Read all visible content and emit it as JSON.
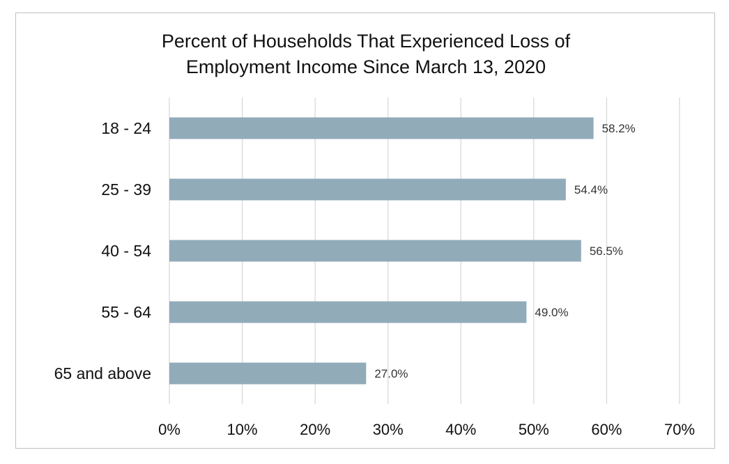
{
  "chart_data": {
    "type": "bar",
    "orientation": "horizontal",
    "title": "Percent of Households That Experienced Loss of Employment Income Since March 13, 2020",
    "title_lines": [
      "Percent of Households That Experienced Loss of",
      "Employment Income Since March 13, 2020"
    ],
    "xlabel": "",
    "ylabel": "",
    "categories": [
      "18 - 24",
      "25 - 39",
      "40 - 54",
      "55 - 64",
      "65 and above"
    ],
    "values": [
      58.2,
      54.4,
      56.5,
      49.0,
      27.0
    ],
    "data_labels": [
      "58.2%",
      "54.4%",
      "56.5%",
      "49.0%",
      "27.0%"
    ],
    "xlim": [
      0,
      70
    ],
    "x_ticks": [
      0,
      10,
      20,
      30,
      40,
      50,
      60,
      70
    ],
    "x_tick_labels": [
      "0%",
      "10%",
      "20%",
      "30%",
      "40%",
      "50%",
      "60%",
      "70%"
    ],
    "grid": "vertical",
    "legend": "none",
    "colors": {
      "bar": "#91abb9",
      "grid": "#d9d9d9",
      "frame": "#bfbfbf",
      "text": "#111111"
    }
  }
}
